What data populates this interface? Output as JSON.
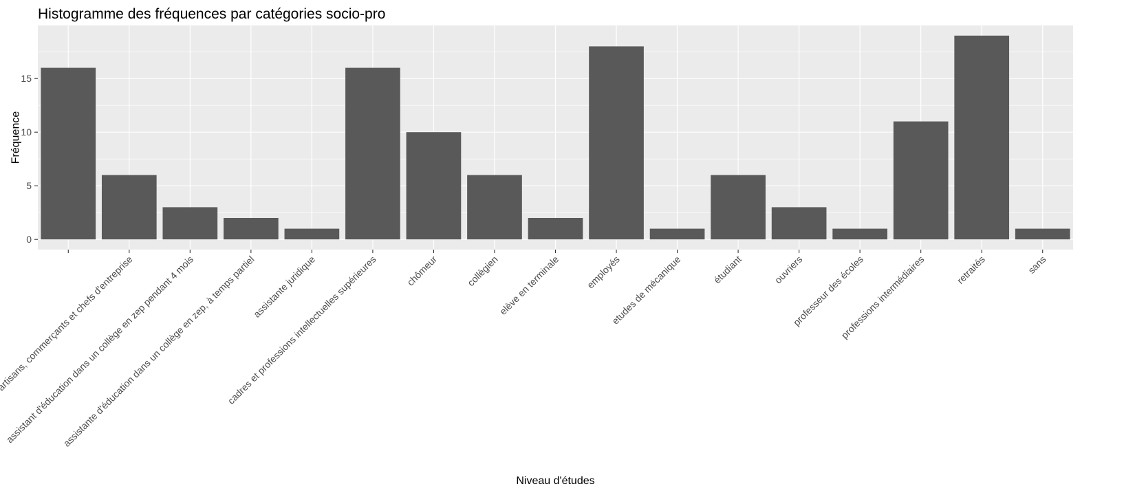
{
  "chart_data": {
    "type": "bar",
    "title": "Histogramme des fréquences par catégories socio-pro",
    "xlabel": "Niveau d'études",
    "ylabel": "Fréquence",
    "categories": [
      "",
      "artisans, commerçants et chefs d'entreprise",
      "assistant d'éducation dans un collège en zep pendant 4 mois",
      "assistante d'éducation dans un collège en zep, à temps partiel",
      "assistante juridique",
      "cadres et professions intellectuelles supérieures",
      "chômeur",
      "collègien",
      "elève en terminale",
      "employés",
      "etudes de mécanique",
      "étudiant",
      "ouvriers",
      "professeur des écoles",
      "professions intermédiaires",
      "retraités",
      "sans"
    ],
    "values": [
      16,
      6,
      3,
      2,
      1,
      16,
      10,
      6,
      2,
      18,
      1,
      6,
      3,
      1,
      11,
      19,
      1
    ],
    "ylim": [
      -0.95,
      19.95
    ],
    "yticks": [
      0,
      5,
      10,
      15
    ],
    "grid": true,
    "legend": "none",
    "colors": {
      "bar": "#595959",
      "panel": "#ebebeb",
      "grid_major": "#ffffff",
      "tick_text": "#4d4d4d"
    }
  }
}
